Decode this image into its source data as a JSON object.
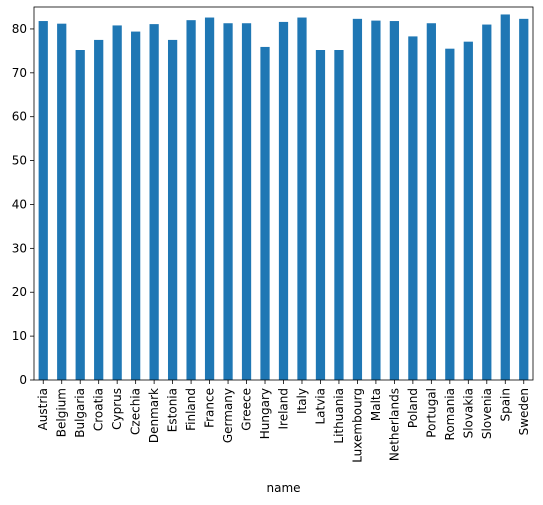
{
  "chart_data": {
    "type": "bar",
    "title": "",
    "xlabel": "name",
    "ylabel": "",
    "ylim": [
      0,
      85
    ],
    "yticks": [
      0,
      10,
      20,
      30,
      40,
      50,
      60,
      70,
      80
    ],
    "grid": false,
    "legend": "none",
    "color": "#1f77b4",
    "categories": [
      "Austria",
      "Belgium",
      "Bulgaria",
      "Croatia",
      "Cyprus",
      "Czechia",
      "Denmark",
      "Estonia",
      "Finland",
      "France",
      "Germany",
      "Greece",
      "Hungary",
      "Ireland",
      "Italy",
      "Latvia",
      "Lithuania",
      "Luxembourg",
      "Malta",
      "Netherlands",
      "Poland",
      "Portugal",
      "Romania",
      "Slovakia",
      "Slovenia",
      "Spain",
      "Sweden"
    ],
    "values": [
      81.8,
      81.2,
      75.2,
      77.5,
      80.8,
      79.4,
      81.1,
      77.5,
      82.0,
      82.6,
      81.3,
      81.3,
      75.9,
      81.6,
      82.6,
      75.2,
      75.2,
      82.3,
      81.9,
      81.8,
      78.3,
      81.3,
      75.5,
      77.1,
      81.0,
      83.3,
      82.3
    ]
  }
}
